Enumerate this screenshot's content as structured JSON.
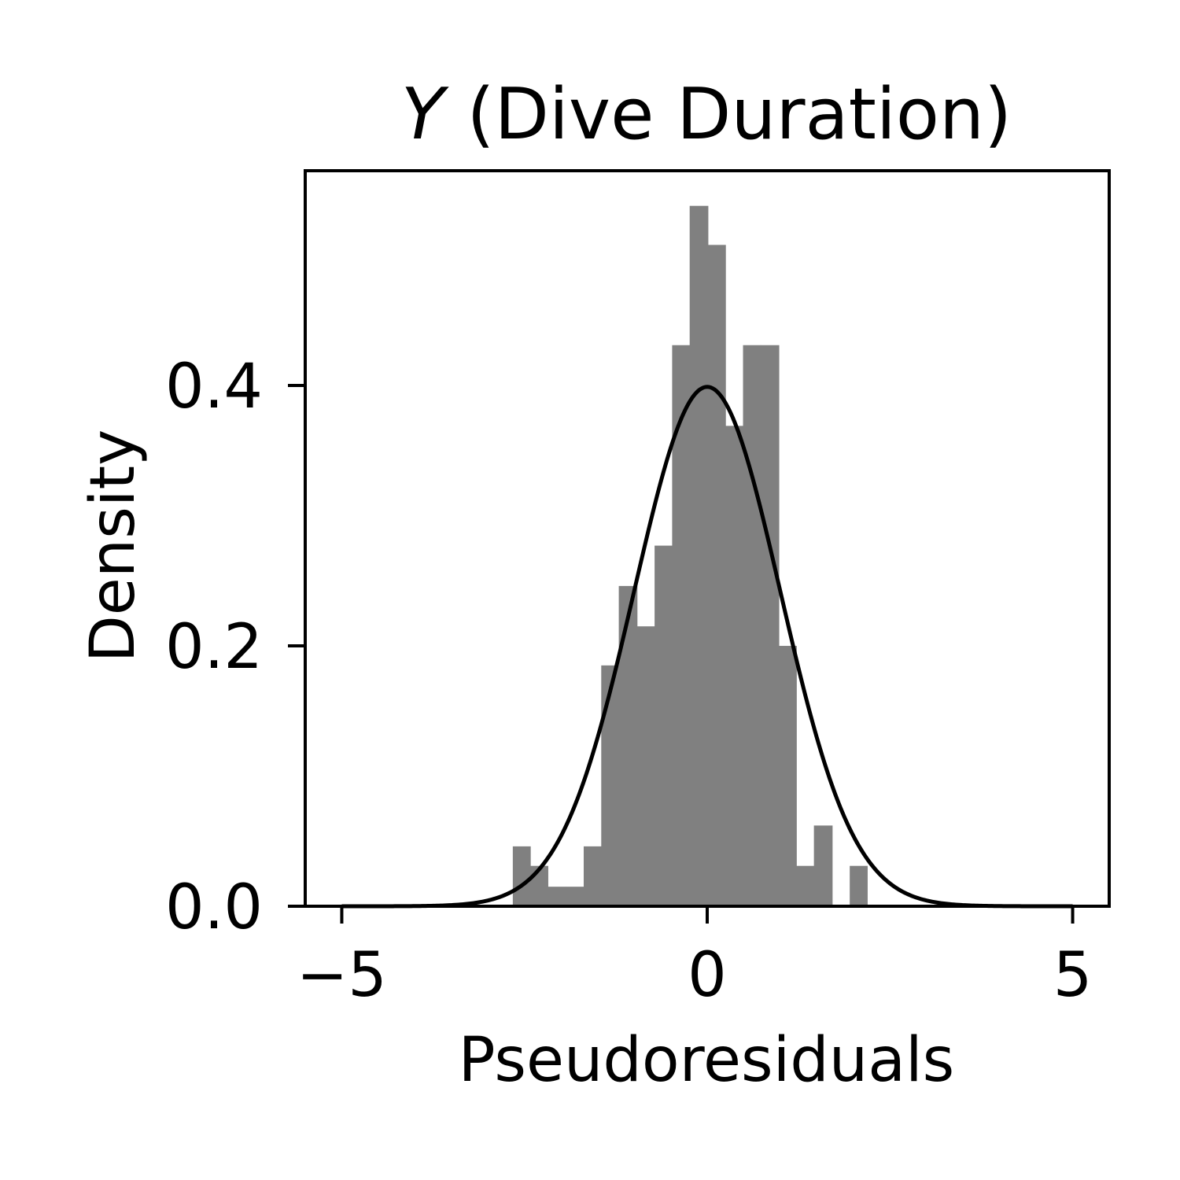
{
  "chart_data": {
    "type": "bar",
    "title": {
      "var": "Y",
      "text": " (Dive Duration)"
    },
    "xlabel": "Pseudoresiduals",
    "ylabel": "Density",
    "xlim": [
      -5.5,
      5.5
    ],
    "ylim": [
      0,
      0.565
    ],
    "xticks": [
      {
        "value": -5,
        "label": "−5"
      },
      {
        "value": 0,
        "label": "0"
      },
      {
        "value": 5,
        "label": "5"
      }
    ],
    "yticks": [
      {
        "value": 0.0,
        "label": "0.0"
      },
      {
        "value": 0.2,
        "label": "0.2"
      },
      {
        "value": 0.4,
        "label": "0.4"
      }
    ],
    "grid": false,
    "histogram": {
      "color": "#808080",
      "bins": [
        {
          "x0": -2.66,
          "x1": -2.42,
          "density": 0.046
        },
        {
          "x0": -2.42,
          "x1": -2.18,
          "density": 0.031
        },
        {
          "x0": -2.18,
          "x1": -1.93,
          "density": 0.015
        },
        {
          "x0": -1.93,
          "x1": -1.69,
          "density": 0.015
        },
        {
          "x0": -1.69,
          "x1": -1.45,
          "density": 0.046
        },
        {
          "x0": -1.45,
          "x1": -1.21,
          "density": 0.185
        },
        {
          "x0": -1.21,
          "x1": -0.96,
          "density": 0.246
        },
        {
          "x0": -0.96,
          "x1": -0.72,
          "density": 0.215
        },
        {
          "x0": -0.72,
          "x1": -0.48,
          "density": 0.277
        },
        {
          "x0": -0.48,
          "x1": -0.24,
          "density": 0.431
        },
        {
          "x0": -0.24,
          "x1": 0.01,
          "density": 0.538
        },
        {
          "x0": 0.01,
          "x1": 0.25,
          "density": 0.508
        },
        {
          "x0": 0.25,
          "x1": 0.49,
          "density": 0.369
        },
        {
          "x0": 0.49,
          "x1": 0.73,
          "density": 0.431
        },
        {
          "x0": 0.73,
          "x1": 0.98,
          "density": 0.431
        },
        {
          "x0": 0.98,
          "x1": 1.22,
          "density": 0.2
        },
        {
          "x0": 1.22,
          "x1": 1.46,
          "density": 0.031
        },
        {
          "x0": 1.46,
          "x1": 1.71,
          "density": 0.062
        },
        {
          "x0": 1.71,
          "x1": 1.95,
          "density": 0.0
        },
        {
          "x0": 1.95,
          "x1": 2.19,
          "density": 0.031
        }
      ]
    },
    "curve": {
      "kind": "standard normal density",
      "mean": 0,
      "sd": 1,
      "x_range": [
        -5,
        5
      ],
      "color": "#000000"
    }
  }
}
